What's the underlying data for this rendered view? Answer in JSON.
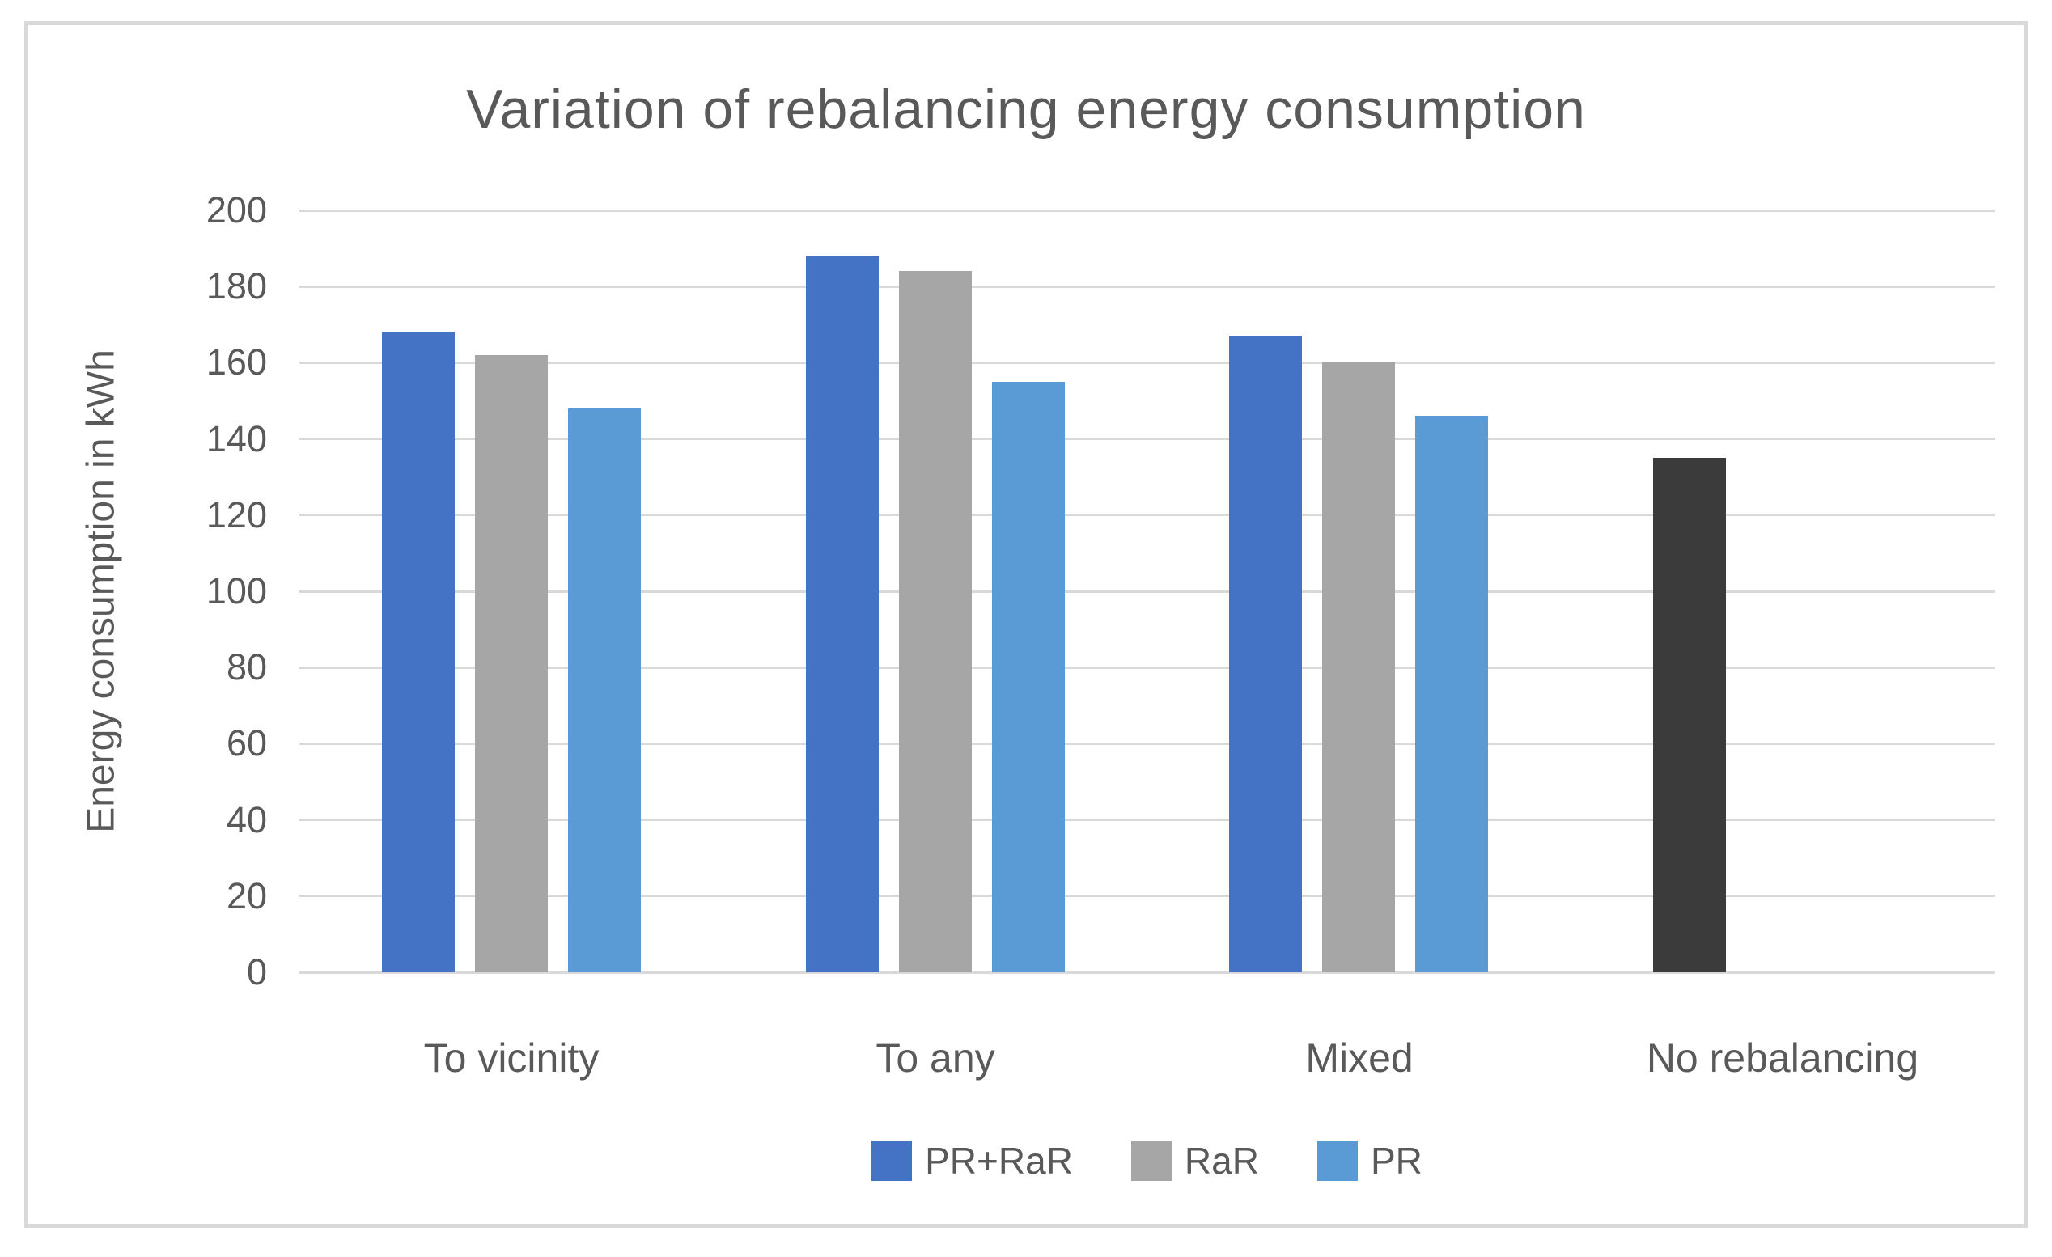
{
  "chart_data": {
    "type": "bar",
    "title": "Variation of rebalancing energy consumption",
    "ylabel": "Energy consumption in kWh",
    "xlabel": "",
    "categories": [
      "To vicinity",
      "To any",
      "Mixed",
      "No rebalancing"
    ],
    "series": [
      {
        "name": "PR+RaR",
        "color": "#4472C4",
        "values": [
          168,
          188,
          167,
          null
        ]
      },
      {
        "name": "RaR",
        "color": "#A6A6A6",
        "values": [
          162,
          184,
          160,
          null
        ]
      },
      {
        "name": "PR",
        "color": "#5B9BD5",
        "values": [
          148,
          155,
          146,
          null
        ]
      }
    ],
    "single_bars": [
      {
        "category_index": 3,
        "slot": 0,
        "value": 135,
        "color": "#3B3B3B"
      }
    ],
    "ylim": [
      0,
      200
    ],
    "yticks": [
      0,
      20,
      40,
      60,
      80,
      100,
      120,
      140,
      160,
      180,
      200
    ],
    "grid": true,
    "legend_position": "bottom",
    "legend": [
      "PR+RaR",
      "RaR",
      "PR"
    ]
  },
  "style": {
    "text_color": "#595959",
    "gridline_color": "#D9D9D9",
    "frame_border_color": "#D9D9D9",
    "background": "#FFFFFF"
  }
}
